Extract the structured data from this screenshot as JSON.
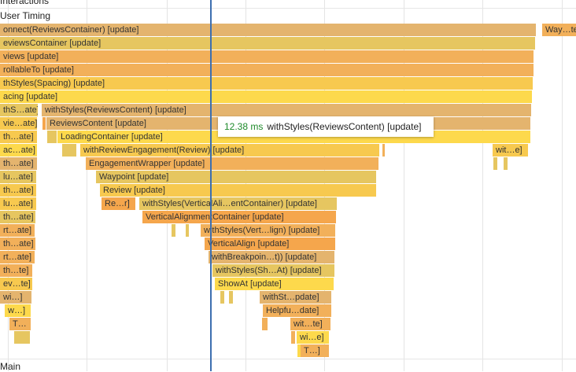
{
  "tracks": {
    "interactions": "Interactions",
    "user_timing": "User Timing",
    "main": "Main"
  },
  "tooltip": {
    "duration": "12.38 ms",
    "name": "withStyles(ReviewsContent) [update]"
  },
  "colors": {
    "orange": "#f2b05a",
    "tan": "#e4b46e",
    "yellow": "#fdd94c",
    "gold": "#f7c94f",
    "olive": "#e6c660",
    "deep": "#f5a64c",
    "cursor": "#3d6fb0",
    "duration": "#1e8a2a"
  },
  "bars": [
    {
      "label": "onnect(ReviewsContainer) [update]",
      "color": "tan"
    },
    {
      "label": "Way…te]",
      "color": "orange"
    },
    {
      "label": "eviewsContainer [update]",
      "color": "olive"
    },
    {
      "label": "views [update]",
      "color": "orange"
    },
    {
      "label": "rollableTo [update]",
      "color": "orange"
    },
    {
      "label": "thStyles(Spacing) [update]",
      "color": "gold"
    },
    {
      "label": "acing [update]",
      "color": "yellow"
    },
    {
      "label": "thS…ate]",
      "color": "olive"
    },
    {
      "label": "withStyles(ReviewsContent) [update]",
      "color": "tan"
    },
    {
      "label": "vie…ate]",
      "color": "gold"
    },
    {
      "label": "",
      "color": "deep"
    },
    {
      "label": "ReviewsContent [update]",
      "color": "tan"
    },
    {
      "label": "th…ate]",
      "color": "gold"
    },
    {
      "label": "",
      "color": "olive"
    },
    {
      "label": "LoadingContainer [update]",
      "color": "yellow"
    },
    {
      "label": "ac…ate]",
      "color": "yellow"
    },
    {
      "label": "",
      "color": "olive"
    },
    {
      "label": "withReviewEngagement(Review) [update]",
      "color": "gold"
    },
    {
      "label": "",
      "color": "orange"
    },
    {
      "label": "wit…e]",
      "color": "gold"
    },
    {
      "label": "th…ate]",
      "color": "tan"
    },
    {
      "label": "EngagementWrapper [update]",
      "color": "orange"
    },
    {
      "label": "",
      "color": "olive"
    },
    {
      "label": "",
      "color": "olive"
    },
    {
      "label": "lu…ate]",
      "color": "olive"
    },
    {
      "label": "Waypoint [update]",
      "color": "olive"
    },
    {
      "label": "th…ate]",
      "color": "gold"
    },
    {
      "label": "Review [update]",
      "color": "gold"
    },
    {
      "label": "lu…ate]",
      "color": "gold"
    },
    {
      "label": "Re…r]",
      "color": "deep"
    },
    {
      "label": "withStyles(VerticalAli…entContainer) [update]",
      "color": "olive"
    },
    {
      "label": "th…ate]",
      "color": "olive"
    },
    {
      "label": "VerticalAlignmentContainer [update]",
      "color": "deep"
    },
    {
      "label": "rt…ate]",
      "color": "orange"
    },
    {
      "label": "",
      "color": "olive"
    },
    {
      "label": "",
      "color": "olive"
    },
    {
      "label": "withStyles(Vert…lign) [update]",
      "color": "orange"
    },
    {
      "label": "th…ate]",
      "color": "orange"
    },
    {
      "label": "VerticalAlign [update]",
      "color": "deep"
    },
    {
      "label": "rt…ate]",
      "color": "orange"
    },
    {
      "label": "withBreakpoin…t)) [update]",
      "color": "tan"
    },
    {
      "label": "th…te]",
      "color": "orange"
    },
    {
      "label": "withStyles(Sh…At) [update]",
      "color": "olive"
    },
    {
      "label": "ev…te]",
      "color": "gold"
    },
    {
      "label": "ShowAt [update]",
      "color": "yellow"
    },
    {
      "label": "wi…]",
      "color": "tan"
    },
    {
      "label": "",
      "color": "olive"
    },
    {
      "label": "",
      "color": "olive"
    },
    {
      "label": "withSt…pdate]",
      "color": "tan"
    },
    {
      "label": "w…]",
      "color": "yellow"
    },
    {
      "label": "Helpfu…date]",
      "color": "orange"
    },
    {
      "label": "T…",
      "color": "orange"
    },
    {
      "label": "",
      "color": "orange"
    },
    {
      "label": "wit…te]",
      "color": "orange"
    },
    {
      "label": "",
      "color": "olive"
    },
    {
      "label": "",
      "color": "orange"
    },
    {
      "label": "wi…e]",
      "color": "yellow"
    },
    {
      "label": "T…]",
      "color": "orange"
    },
    {
      "label": "",
      "color": "yellow"
    }
  ]
}
